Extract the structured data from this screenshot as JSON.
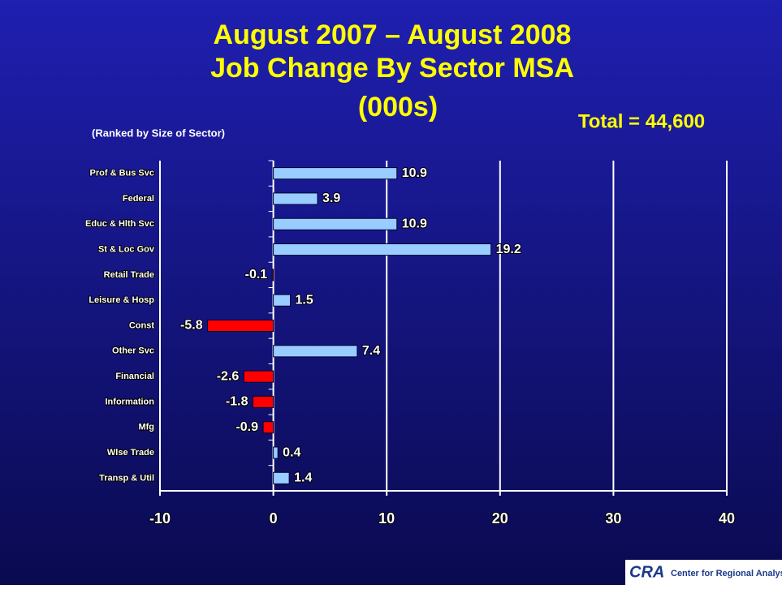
{
  "chart_data": {
    "type": "hbar",
    "title": [
      "August 2007 – August 2008",
      "Job Change By Sector MSA",
      "(000s)"
    ],
    "subtitle": "(Ranked by Size of Sector)",
    "annotation": "Total = 44,600",
    "categories": [
      "Prof & Bus Svc",
      "Federal",
      "Educ & Hlth Svc",
      "St & Loc Gov",
      "Retail Trade",
      "Leisure & Hosp",
      "Const",
      "Other Svc",
      "Financial",
      "Information",
      "Mfg",
      "Wlse Trade",
      "Transp & Util"
    ],
    "values": [
      10.9,
      3.9,
      10.9,
      19.2,
      -0.1,
      1.5,
      -5.8,
      7.4,
      -2.6,
      -1.8,
      -0.9,
      0.4,
      1.4
    ],
    "positive_color": "#99ccff",
    "negative_color": "#ff0000",
    "xlim": [
      -10,
      40
    ],
    "xticks": [
      -10,
      0,
      10,
      20,
      30,
      40
    ],
    "grid": true
  },
  "logo": {
    "mark": "CRA",
    "text": "Center for Regional Analysis"
  }
}
